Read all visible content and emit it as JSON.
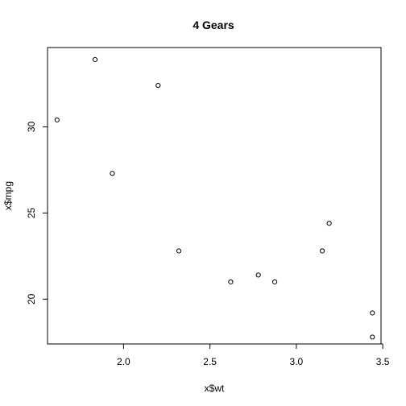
{
  "chart_data": {
    "type": "scatter",
    "title": "4 Gears",
    "xlabel": "x$wt",
    "ylabel": "x$mpg",
    "xlim": [
      1.56,
      3.49
    ],
    "ylim": [
      17.4,
      34.6
    ],
    "x_ticks": [
      2.0,
      2.5,
      3.0,
      3.5
    ],
    "x_tick_labels": [
      "2.0",
      "2.5",
      "3.0",
      "3.5"
    ],
    "y_ticks": [
      20,
      25,
      30
    ],
    "y_tick_labels": [
      "20",
      "25",
      "30"
    ],
    "grid": false,
    "marker": "open-circle",
    "points": [
      {
        "x": 2.62,
        "y": 21.0
      },
      {
        "x": 2.875,
        "y": 21.0
      },
      {
        "x": 2.32,
        "y": 22.8
      },
      {
        "x": 3.19,
        "y": 24.4
      },
      {
        "x": 3.15,
        "y": 22.8
      },
      {
        "x": 3.44,
        "y": 19.2
      },
      {
        "x": 3.44,
        "y": 17.8
      },
      {
        "x": 2.2,
        "y": 32.4
      },
      {
        "x": 1.615,
        "y": 30.4
      },
      {
        "x": 1.835,
        "y": 33.9
      },
      {
        "x": 1.935,
        "y": 27.3
      },
      {
        "x": 2.78,
        "y": 21.4
      }
    ]
  }
}
